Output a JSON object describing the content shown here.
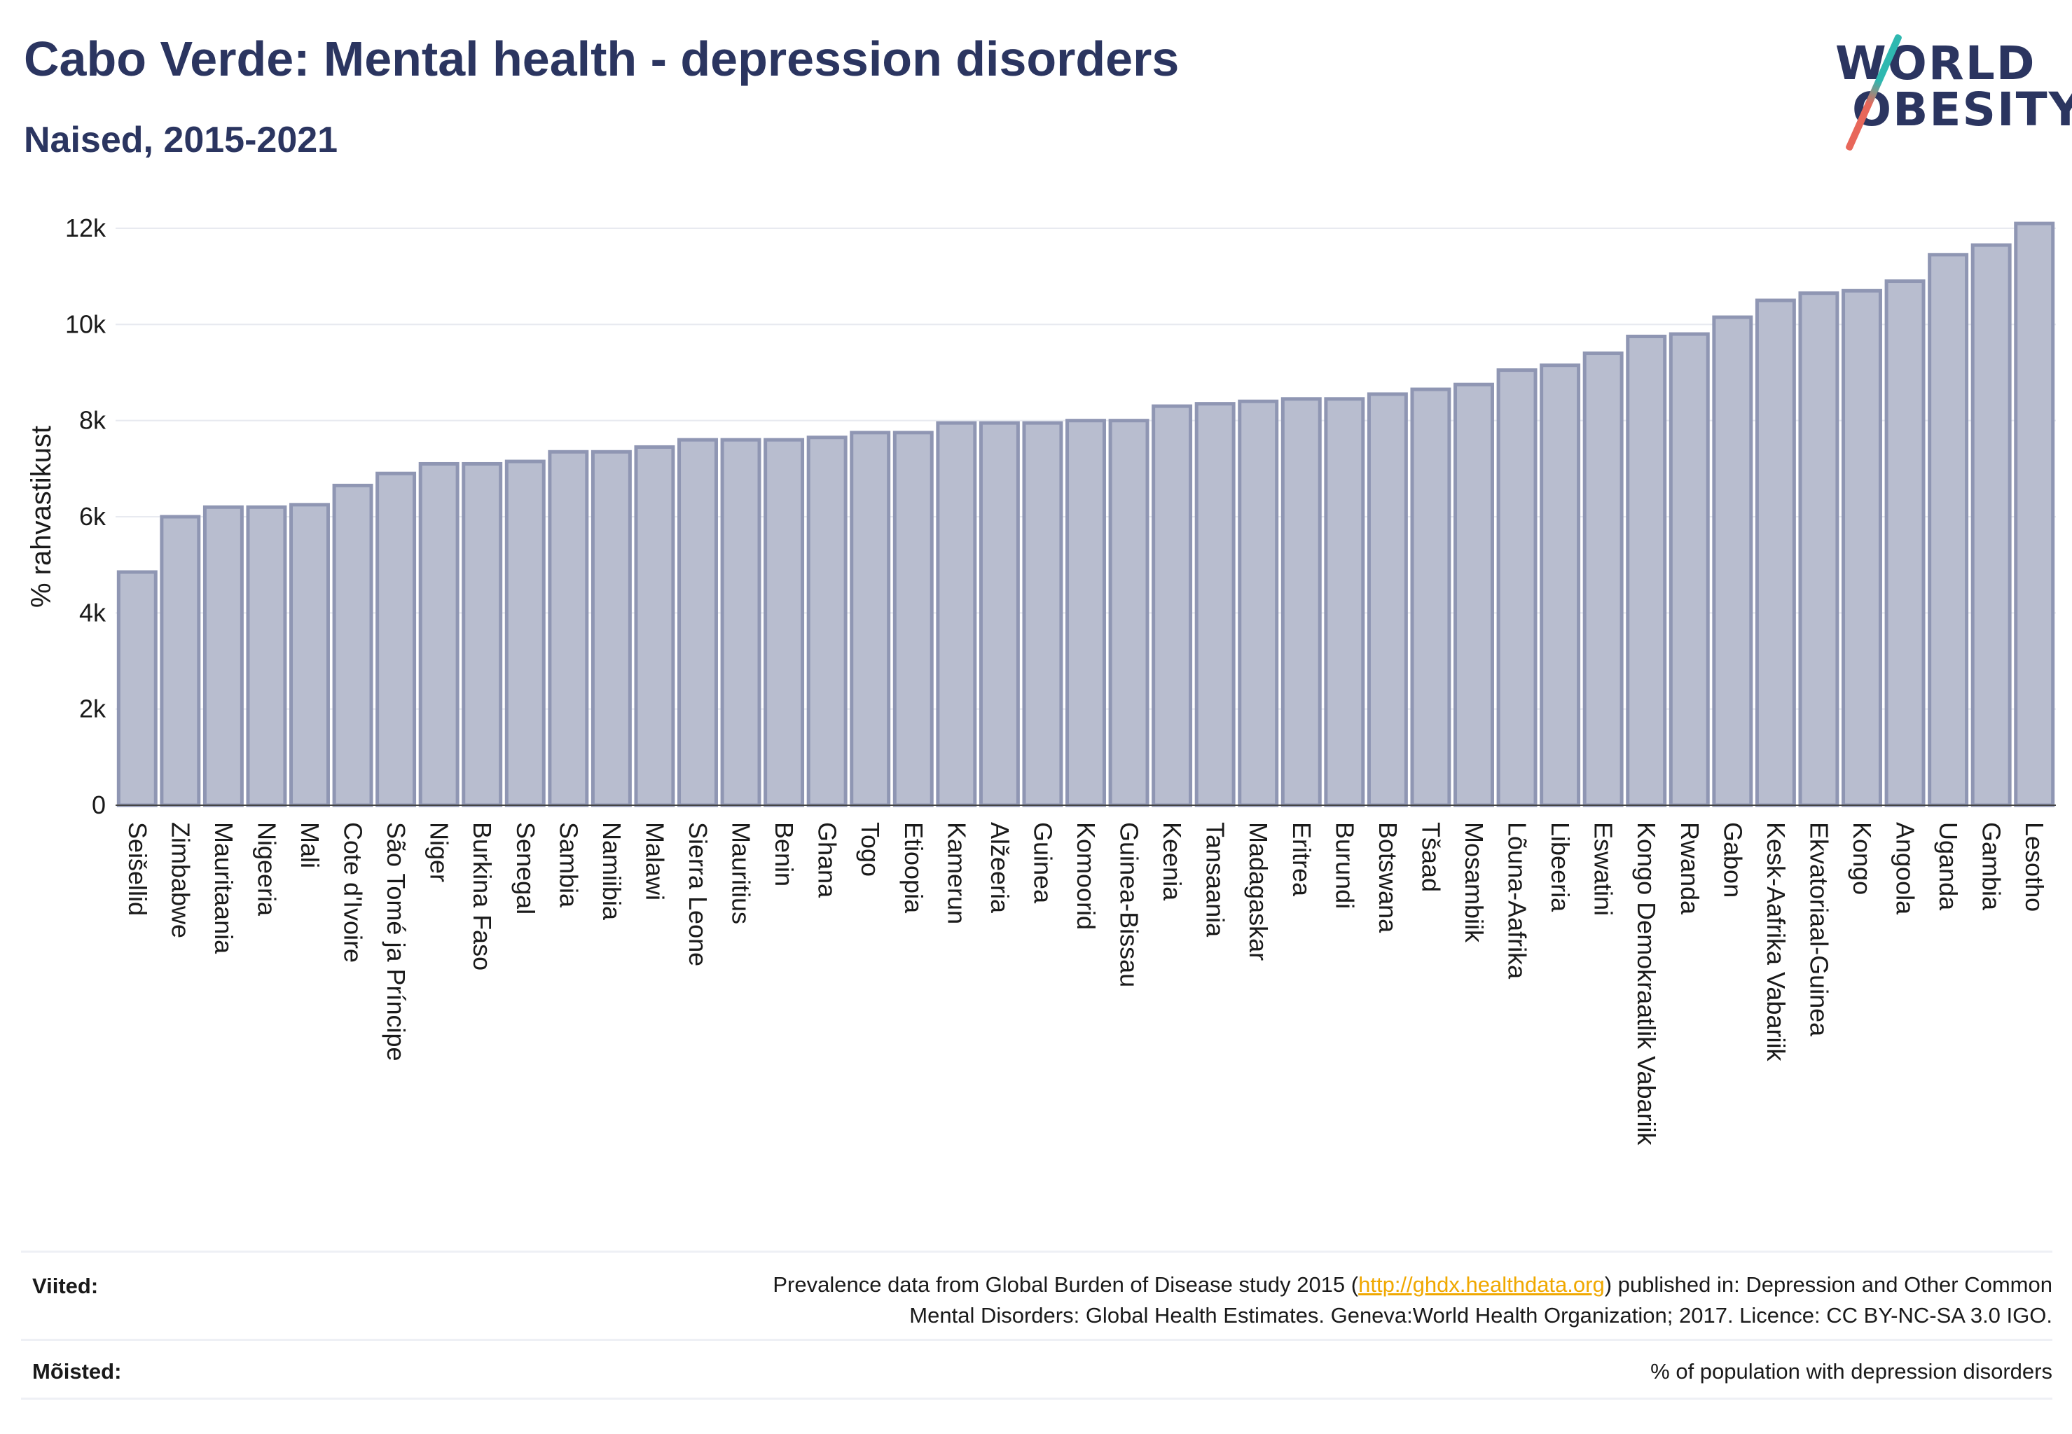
{
  "title": "Cabo Verde: Mental health - depression disorders",
  "subtitle": "Naised, 2015-2021",
  "logo": {
    "line1": "WORLD",
    "line2": "OBESITY"
  },
  "chart_data": {
    "type": "bar",
    "ylabel": "% rahvastikust",
    "ylim": [
      0,
      12000
    ],
    "yticks": [
      0,
      2000,
      4000,
      6000,
      8000,
      10000,
      12000
    ],
    "ytick_labels": [
      "0",
      "2k",
      "4k",
      "6k",
      "8k",
      "10k",
      "12k"
    ],
    "grid": true,
    "bar_color": "#b8bdcf",
    "bar_edge_color": "#8f96b3",
    "categories": [
      "Seišellid",
      "Zimbabwe",
      "Mauritaania",
      "Nigeeria",
      "Mali",
      "Cote d'Ivoire",
      "São Tomé ja Príncipe",
      "Niger",
      "Burkina Faso",
      "Senegal",
      "Sambia",
      "Namiibia",
      "Malawi",
      "Sierra Leone",
      "Mauritius",
      "Benin",
      "Ghana",
      "Togo",
      "Etioopia",
      "Kamerun",
      "Alžeeria",
      "Guinea",
      "Komoorid",
      "Guinea-Bissau",
      "Keenia",
      "Tansaania",
      "Madagaskar",
      "Eritrea",
      "Burundi",
      "Botswana",
      "Tšaad",
      "Mosambiik",
      "Lõuna-Aafrika",
      "Libeeria",
      "Eswatini",
      "Kongo Demokraatlik Vabariik",
      "Rwanda",
      "Gabon",
      "Kesk-Aafrika Vabariik",
      "Ekvatoriaal-Guinea",
      "Kongo",
      "Angoola",
      "Uganda",
      "Gambia",
      "Lesotho"
    ],
    "values": [
      4850,
      6000,
      6200,
      6200,
      6250,
      6650,
      6900,
      7100,
      7100,
      7150,
      7350,
      7350,
      7450,
      7600,
      7600,
      7600,
      7650,
      7750,
      7750,
      7950,
      7950,
      7950,
      8000,
      8000,
      8300,
      8350,
      8400,
      8450,
      8450,
      8550,
      8650,
      8750,
      9050,
      9150,
      9400,
      9750,
      9800,
      10150,
      10500,
      10650,
      10700,
      10900,
      11450,
      11650,
      12100
    ]
  },
  "footer": {
    "sources_label": "Viited:",
    "sources_pre": "Prevalence data from Global Burden of Disease study 2015 (",
    "sources_link": "http://ghdx.healthdata.org",
    "sources_post": ") published in: Depression and Other Common",
    "sources_line2": "Mental Disorders: Global Health Estimates. Geneva:World Health Organization; 2017. Licence: CC BY-NC-SA 3.0 IGO.",
    "definitions_label": "Mõisted:",
    "definitions_text": "% of population with depression disorders"
  }
}
